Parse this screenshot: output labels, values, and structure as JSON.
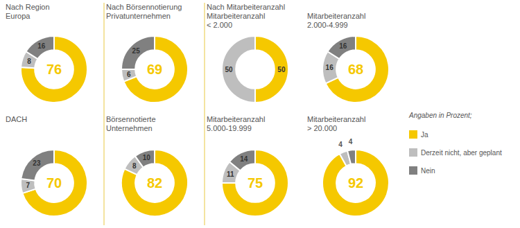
{
  "chart_data": [
    {
      "type": "donut",
      "subtitle": "Nach Region",
      "title": "Europa",
      "categories": [
        "Ja",
        "Derzeit nicht, aber geplant",
        "Nein"
      ],
      "values": [
        76,
        8,
        16
      ],
      "colors": [
        "#F5C800",
        "#BEBEBE",
        "#808080"
      ],
      "data_labels": true
    },
    {
      "type": "donut",
      "subtitle": "Nach Börsennotierung",
      "title": "Privatunternehmen",
      "categories": [
        "Ja",
        "Derzeit nicht, aber geplant",
        "Nein"
      ],
      "values": [
        69,
        6,
        25
      ],
      "colors": [
        "#F5C800",
        "#BEBEBE",
        "#808080"
      ],
      "data_labels": true
    },
    {
      "type": "donut",
      "subtitle": "Nach Mitarbeiteranzahl",
      "title": "Mitarbeiteranzahl\n< 2.000",
      "categories": [
        "Ja",
        "Derzeit nicht, aber geplant",
        "Nein"
      ],
      "values": [
        50,
        50,
        0
      ],
      "colors": [
        "#F5C800",
        "#BEBEBE",
        "#808080"
      ],
      "data_labels": true
    },
    {
      "type": "donut",
      "title": "Mitarbeiteranzahl\n2.000-4.999",
      "categories": [
        "Ja",
        "Derzeit nicht, aber geplant",
        "Nein"
      ],
      "values": [
        68,
        16,
        16
      ],
      "colors": [
        "#F5C800",
        "#BEBEBE",
        "#808080"
      ],
      "data_labels": true
    },
    {
      "type": "donut",
      "title": "DACH",
      "categories": [
        "Ja",
        "Derzeit nicht, aber geplant",
        "Nein"
      ],
      "values": [
        70,
        7,
        23
      ],
      "colors": [
        "#F5C800",
        "#BEBEBE",
        "#808080"
      ],
      "data_labels": true
    },
    {
      "type": "donut",
      "title": "Börsennotierte\nUnternehmen",
      "categories": [
        "Ja",
        "Derzeit nicht, aber geplant",
        "Nein"
      ],
      "values": [
        82,
        8,
        10
      ],
      "colors": [
        "#F5C800",
        "#BEBEBE",
        "#808080"
      ],
      "data_labels": true
    },
    {
      "type": "donut",
      "title": "Mitarbeiteranzahl\n5.000-19.999",
      "categories": [
        "Ja",
        "Derzeit nicht, aber geplant",
        "Nein"
      ],
      "values": [
        75,
        11,
        14
      ],
      "colors": [
        "#F5C800",
        "#BEBEBE",
        "#808080"
      ],
      "data_labels": true
    },
    {
      "type": "donut",
      "title": "Mitarbeiteranzahl\n> 20.000",
      "categories": [
        "Ja",
        "Derzeit nicht, aber geplant",
        "Nein"
      ],
      "values": [
        92,
        4,
        4
      ],
      "colors": [
        "#F5C800",
        "#BEBEBE",
        "#808080"
      ],
      "data_labels": true,
      "legend": "right",
      "annotations": [
        "Angaben in Prozent;"
      ]
    }
  ]
}
